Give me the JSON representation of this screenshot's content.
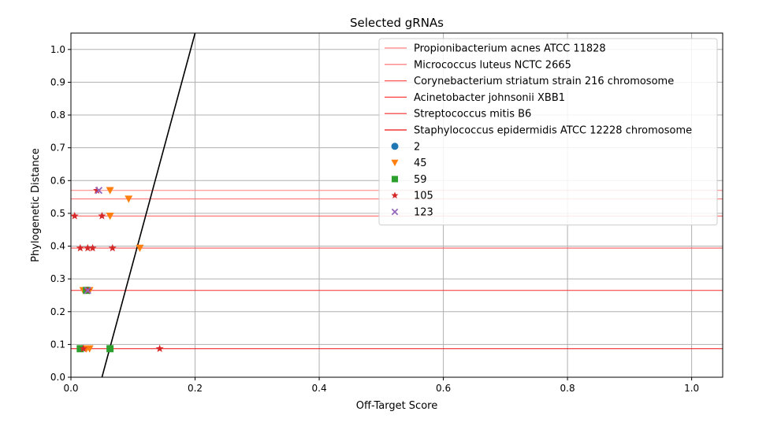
{
  "chart_data": {
    "type": "scatter",
    "title": "Selected gRNAs",
    "xlabel": "Off-Target Score",
    "ylabel": "Phylogenetic Distance",
    "xlim": [
      0.0,
      1.05
    ],
    "ylim": [
      0.0,
      1.05
    ],
    "grid": true,
    "legend_position": "top-right",
    "x_ticks": [
      "0.0",
      "0.2",
      "0.4",
      "0.6",
      "0.8",
      "1.0"
    ],
    "x_tick_values": [
      0.0,
      0.2,
      0.4,
      0.6,
      0.8,
      1.0
    ],
    "y_ticks": [
      "0.0",
      "0.1",
      "0.2",
      "0.3",
      "0.4",
      "0.5",
      "0.6",
      "0.7",
      "0.8",
      "0.9",
      "1.0"
    ],
    "y_tick_values": [
      0.0,
      0.1,
      0.2,
      0.3,
      0.4,
      0.5,
      0.6,
      0.7,
      0.8,
      0.9,
      1.0
    ],
    "reference_lines": [
      {
        "name": "Propionibacterium acnes ATCC 11828",
        "y": 0.57,
        "color": "#ff7f7f"
      },
      {
        "name": "Micrococcus luteus NCTC 2665",
        "y": 0.544,
        "color": "#ff6a6a"
      },
      {
        "name": "Corynebacterium striatum strain 216 chromosome",
        "y": 0.492,
        "color": "#ff5555"
      },
      {
        "name": "Acinetobacter johnsonii XBB1",
        "y": 0.394,
        "color": "#ff3f3f"
      },
      {
        "name": "Streptococcus mitis B6",
        "y": 0.265,
        "color": "#f52a2a"
      },
      {
        "name": "Staphylococcus epidermidis ATCC 12228 chromosome",
        "y": 0.087,
        "color": "#ee1111"
      }
    ],
    "diagonal_line": {
      "x": [
        0.05,
        0.2
      ],
      "y": [
        0.0,
        1.05
      ],
      "color": "#000000"
    },
    "series": [
      {
        "name": "2",
        "marker": "circle",
        "color": "#1f77b4",
        "points": []
      },
      {
        "name": "45",
        "marker": "triangle-down",
        "color": "#ff7f0e",
        "points": [
          [
            0.063,
            0.57
          ],
          [
            0.093,
            0.544
          ],
          [
            0.063,
            0.492
          ],
          [
            0.111,
            0.394
          ],
          [
            0.02,
            0.265
          ],
          [
            0.03,
            0.265
          ],
          [
            0.025,
            0.087
          ],
          [
            0.03,
            0.087
          ]
        ]
      },
      {
        "name": "59",
        "marker": "square",
        "color": "#2ca02c",
        "points": [
          [
            0.025,
            0.265
          ],
          [
            0.015,
            0.087
          ],
          [
            0.063,
            0.087
          ]
        ]
      },
      {
        "name": "105",
        "marker": "star",
        "color": "#d62728",
        "points": [
          [
            0.042,
            0.57
          ],
          [
            0.006,
            0.492
          ],
          [
            0.05,
            0.492
          ],
          [
            0.015,
            0.394
          ],
          [
            0.027,
            0.394
          ],
          [
            0.035,
            0.394
          ],
          [
            0.067,
            0.394
          ],
          [
            0.027,
            0.265
          ],
          [
            0.02,
            0.087
          ],
          [
            0.143,
            0.087
          ]
        ]
      },
      {
        "name": "123",
        "marker": "x",
        "color": "#9467bd",
        "points": [
          [
            0.045,
            0.57
          ],
          [
            0.027,
            0.265
          ]
        ]
      }
    ]
  }
}
